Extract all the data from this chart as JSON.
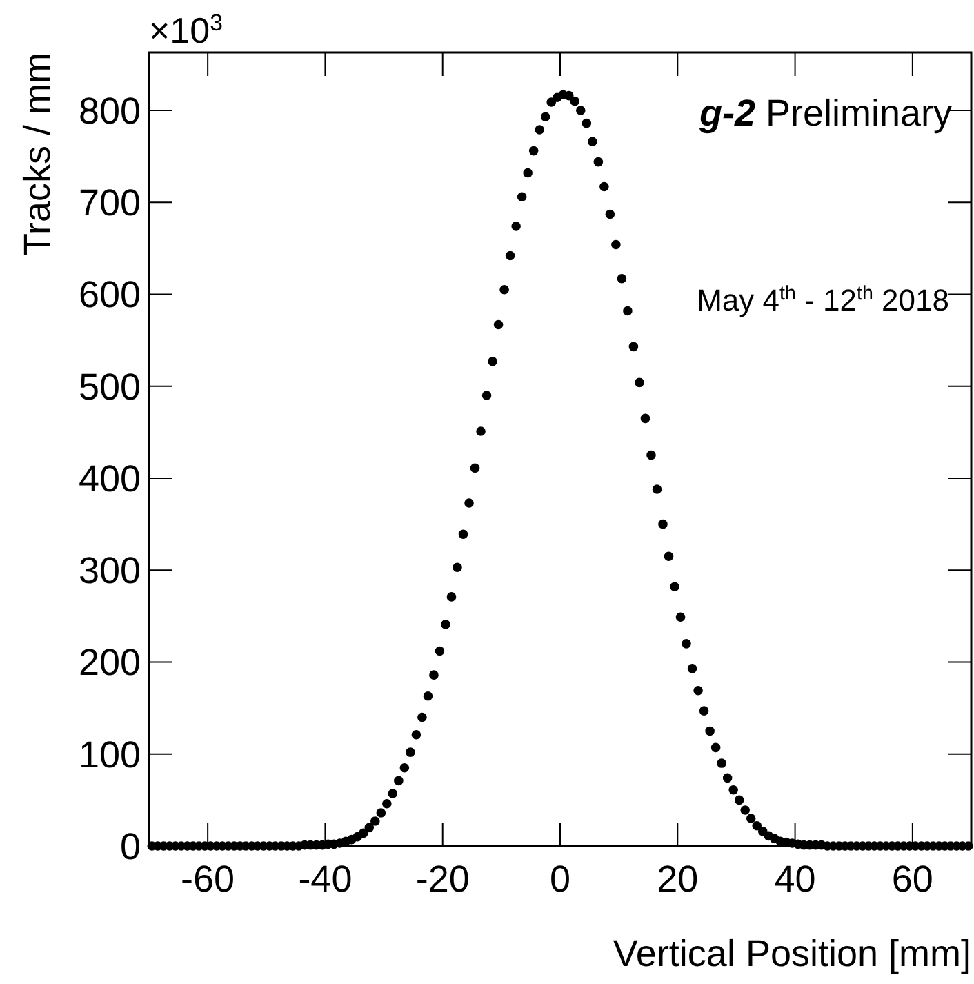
{
  "chart_data": {
    "type": "scatter",
    "xlabel": "Vertical Position [mm]",
    "ylabel": "Tracks / mm",
    "annotations": [
      "×10$^{3}$",
      "g-2 Preliminary",
      "May 4$^{th}$ - 12$^{th}$ 2018"
    ],
    "x": [
      -69.5,
      -68.5,
      -67.5,
      -66.5,
      -65.5,
      -64.5,
      -63.5,
      -62.5,
      -61.5,
      -60.5,
      -59.5,
      -58.5,
      -57.5,
      -56.5,
      -55.5,
      -54.5,
      -53.5,
      -52.5,
      -51.5,
      -50.5,
      -49.5,
      -48.5,
      -47.5,
      -46.5,
      -45.5,
      -44.5,
      -43.5,
      -42.5,
      -41.5,
      -40.5,
      -39.5,
      -38.5,
      -37.5,
      -36.5,
      -35.5,
      -34.5,
      -33.5,
      -32.5,
      -31.5,
      -30.5,
      -29.5,
      -28.5,
      -27.5,
      -26.5,
      -25.5,
      -24.5,
      -23.5,
      -22.5,
      -21.5,
      -20.5,
      -19.5,
      -18.5,
      -17.5,
      -16.5,
      -15.5,
      -14.5,
      -13.5,
      -12.5,
      -11.5,
      -10.5,
      -9.5,
      -8.5,
      -7.5,
      -6.5,
      -5.5,
      -4.5,
      -3.5,
      -2.5,
      -1.5,
      -0.5,
      0.5,
      1.5,
      2.5,
      3.5,
      4.5,
      5.5,
      6.5,
      7.5,
      8.5,
      9.5,
      10.5,
      11.5,
      12.5,
      13.5,
      14.5,
      15.5,
      16.5,
      17.5,
      18.5,
      19.5,
      20.5,
      21.5,
      22.5,
      23.5,
      24.5,
      25.5,
      26.5,
      27.5,
      28.5,
      29.5,
      30.5,
      31.5,
      32.5,
      33.5,
      34.5,
      35.5,
      36.5,
      37.5,
      38.5,
      39.5,
      40.5,
      41.5,
      42.5,
      43.5,
      44.5,
      45.5,
      46.5,
      47.5,
      48.5,
      49.5,
      50.5,
      51.5,
      52.5,
      53.5,
      54.5,
      55.5,
      56.5,
      57.5,
      58.5,
      59.5,
      60.5,
      61.5,
      62.5,
      63.5,
      64.5,
      65.5,
      66.5,
      67.5,
      68.5,
      69.5
    ],
    "series": [
      {
        "color": "#000000",
        "values": [
          0,
          0,
          0,
          0,
          0,
          0,
          0,
          0,
          0,
          0,
          0,
          0,
          0,
          0,
          0,
          0,
          0,
          0,
          0,
          0,
          0,
          0,
          0,
          0,
          0,
          0,
          1,
          1,
          1,
          1,
          2,
          2,
          3,
          5,
          7,
          10,
          14,
          20,
          27,
          36,
          46,
          57,
          71,
          85,
          102,
          121,
          140,
          163,
          186,
          212,
          241,
          271,
          303,
          339,
          373,
          411,
          451,
          490,
          527,
          567,
          605,
          642,
          674,
          706,
          732,
          756,
          779,
          793,
          809,
          814,
          817,
          816,
          810,
          800,
          786,
          766,
          744,
          717,
          687,
          654,
          617,
          582,
          543,
          504,
          465,
          425,
          388,
          350,
          315,
          282,
          249,
          220,
          193,
          169,
          147,
          125,
          107,
          90,
          74,
          61,
          50,
          39,
          30,
          22,
          16,
          11,
          8,
          5,
          4,
          3,
          2,
          1,
          1,
          1,
          1,
          0,
          0,
          0,
          0,
          0,
          0,
          0,
          0,
          0,
          0,
          0,
          0,
          0,
          0,
          0,
          0,
          0,
          0,
          0,
          0,
          0,
          0,
          0,
          0,
          0
        ]
      }
    ],
    "xlim": [
      -70,
      70
    ],
    "xticks": [
      -60,
      -40,
      -20,
      0,
      20,
      40,
      60
    ],
    "ylim": [
      0,
      863
    ],
    "yticks": [
      0,
      100,
      200,
      300,
      400,
      500,
      600,
      700,
      800
    ],
    "marker": "circle",
    "grid": false
  }
}
